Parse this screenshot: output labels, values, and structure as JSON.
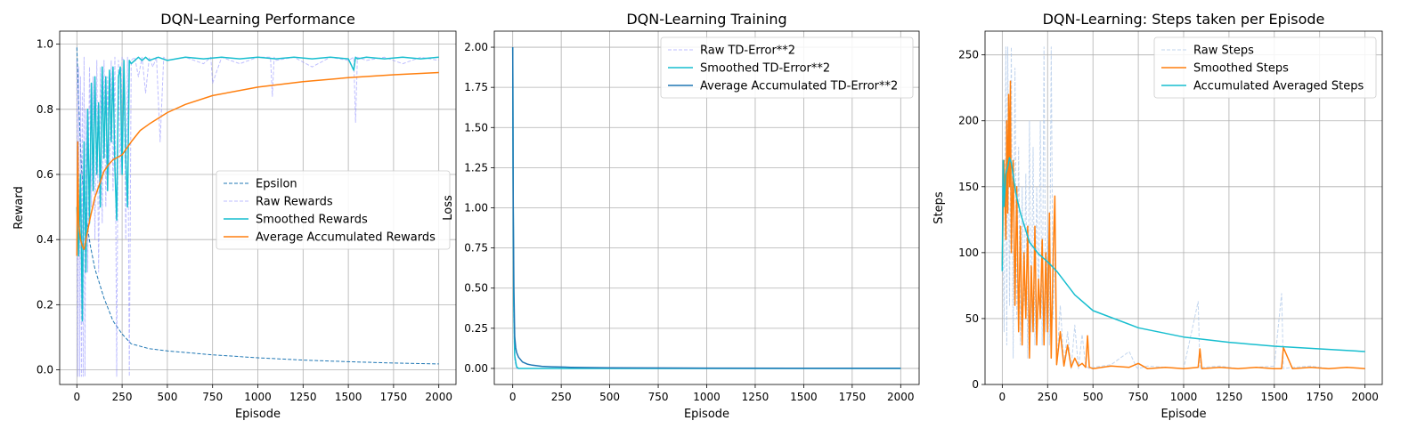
{
  "chart_data": [
    {
      "type": "line",
      "title": "DQN-Learning Performance",
      "xlabel": "Episode",
      "ylabel": "Reward",
      "xlim": [
        -95,
        2095
      ],
      "ylim": [
        -0.045,
        1.04
      ],
      "xticks": [
        0,
        250,
        500,
        750,
        1000,
        1250,
        1500,
        1750,
        2000
      ],
      "yticks": [
        0.0,
        0.2,
        0.4,
        0.6,
        0.8,
        1.0
      ],
      "ytick_decimals": 1,
      "grid": true,
      "legend_position": "center-right",
      "series": [
        {
          "name": "Epsilon",
          "color": "#1f77b4",
          "style": "dashed",
          "width": 1,
          "x": [
            0,
            10,
            25,
            50,
            75,
            100,
            150,
            200,
            250,
            300,
            400,
            500,
            750,
            1000,
            1250,
            1500,
            1750,
            2000
          ],
          "y": [
            0.99,
            0.82,
            0.62,
            0.47,
            0.38,
            0.31,
            0.22,
            0.15,
            0.11,
            0.08,
            0.065,
            0.058,
            0.046,
            0.037,
            0.03,
            0.025,
            0.021,
            0.018
          ]
        },
        {
          "name": "Raw Rewards",
          "color": "#8888ff",
          "style": "dashed",
          "width": 1,
          "opacity": 0.55,
          "x": [
            0,
            5,
            10,
            15,
            20,
            25,
            30,
            35,
            40,
            45,
            50,
            60,
            70,
            80,
            90,
            100,
            110,
            120,
            130,
            140,
            150,
            160,
            170,
            180,
            190,
            200,
            210,
            220,
            230,
            240,
            250,
            260,
            270,
            280,
            290,
            300,
            320,
            340,
            360,
            380,
            400,
            420,
            440,
            460,
            480,
            500,
            600,
            700,
            740,
            750,
            800,
            900,
            1000,
            1070,
            1080,
            1090,
            1100,
            1200,
            1300,
            1400,
            1500,
            1530,
            1540,
            1550,
            1600,
            1700,
            1800,
            1900,
            2000
          ],
          "y": [
            0.95,
            -0.02,
            0.93,
            -0.02,
            0.9,
            -0.02,
            0.85,
            -0.02,
            0.96,
            -0.02,
            0.8,
            0.3,
            0.93,
            0.5,
            0.9,
            0.4,
            0.95,
            0.3,
            0.93,
            0.45,
            0.95,
            0.5,
            0.9,
            0.6,
            0.95,
            0.55,
            0.96,
            -0.02,
            0.95,
            0.6,
            0.96,
            0.95,
            0.4,
            0.96,
            -0.02,
            0.95,
            0.96,
            0.9,
            0.96,
            0.85,
            0.96,
            0.93,
            0.96,
            0.7,
            0.96,
            0.95,
            0.96,
            0.94,
            0.96,
            0.88,
            0.96,
            0.94,
            0.96,
            0.96,
            0.84,
            0.96,
            0.95,
            0.96,
            0.93,
            0.96,
            0.95,
            0.96,
            0.76,
            0.96,
            0.95,
            0.96,
            0.94,
            0.96,
            0.95
          ]
        },
        {
          "name": "Smoothed Rewards",
          "color": "#17becf",
          "style": "solid",
          "width": 1.5,
          "x": [
            0,
            10,
            20,
            30,
            40,
            50,
            60,
            70,
            80,
            90,
            100,
            110,
            120,
            130,
            140,
            150,
            160,
            170,
            180,
            190,
            200,
            210,
            220,
            230,
            240,
            250,
            260,
            270,
            280,
            290,
            300,
            320,
            340,
            360,
            380,
            400,
            450,
            500,
            600,
            700,
            800,
            900,
            1000,
            1100,
            1200,
            1300,
            1400,
            1500,
            1530,
            1540,
            1550,
            1600,
            1700,
            1800,
            1900,
            2000
          ],
          "y": [
            0.5,
            0.35,
            0.6,
            0.15,
            0.7,
            0.3,
            0.8,
            0.45,
            0.88,
            0.55,
            0.9,
            0.6,
            0.82,
            0.5,
            0.93,
            0.65,
            0.9,
            0.55,
            0.92,
            0.7,
            0.93,
            0.62,
            0.46,
            0.9,
            0.93,
            0.6,
            0.95,
            0.65,
            0.5,
            0.95,
            0.94,
            0.95,
            0.96,
            0.95,
            0.96,
            0.95,
            0.96,
            0.95,
            0.96,
            0.955,
            0.96,
            0.955,
            0.96,
            0.955,
            0.96,
            0.955,
            0.96,
            0.955,
            0.92,
            0.96,
            0.955,
            0.96,
            0.955,
            0.96,
            0.955,
            0.96
          ]
        },
        {
          "name": "Average Accumulated Rewards",
          "color": "#ff7f0e",
          "style": "solid",
          "width": 1.5,
          "x": [
            0,
            5,
            10,
            20,
            30,
            40,
            50,
            75,
            100,
            125,
            150,
            175,
            200,
            250,
            300,
            350,
            400,
            500,
            600,
            750,
            1000,
            1250,
            1500,
            1750,
            2000
          ],
          "y": [
            0.35,
            0.7,
            0.45,
            0.4,
            0.38,
            0.37,
            0.4,
            0.47,
            0.53,
            0.57,
            0.61,
            0.63,
            0.645,
            0.66,
            0.7,
            0.735,
            0.755,
            0.79,
            0.815,
            0.842,
            0.868,
            0.885,
            0.897,
            0.906,
            0.913
          ]
        }
      ]
    },
    {
      "type": "line",
      "title": "DQN-Learning Training",
      "xlabel": "Episode",
      "ylabel": "Loss",
      "xlim": [
        -95,
        2095
      ],
      "ylim": [
        -0.1,
        2.1
      ],
      "xticks": [
        0,
        250,
        500,
        750,
        1000,
        1250,
        1500,
        1750,
        2000
      ],
      "yticks": [
        0.0,
        0.25,
        0.5,
        0.75,
        1.0,
        1.25,
        1.5,
        1.75,
        2.0
      ],
      "ytick_decimals": 2,
      "grid": true,
      "legend_position": "top-right",
      "series": [
        {
          "name": "Raw TD-Error**2",
          "color": "#8888ff",
          "style": "dashed",
          "width": 1,
          "opacity": 0.55,
          "x": [
            0,
            2,
            5,
            10,
            20,
            2000
          ],
          "y": [
            2.0,
            1.0,
            0.3,
            0.05,
            0.0,
            0.0
          ]
        },
        {
          "name": "Smoothed TD-Error**2",
          "color": "#17becf",
          "style": "solid",
          "width": 1.5,
          "x": [
            0,
            2,
            5,
            10,
            20,
            30,
            2000
          ],
          "y": [
            2.0,
            1.2,
            0.4,
            0.08,
            0.01,
            0.0,
            0.0
          ]
        },
        {
          "name": "Average Accumulated TD-Error**2",
          "color": "#1f77b4",
          "style": "solid",
          "width": 1.5,
          "x": [
            0,
            3,
            6,
            10,
            15,
            20,
            30,
            50,
            75,
            100,
            150,
            200,
            300,
            500,
            1000,
            2000
          ],
          "y": [
            2.0,
            1.0,
            0.5,
            0.2,
            0.13,
            0.1,
            0.07,
            0.04,
            0.027,
            0.02,
            0.013,
            0.01,
            0.007,
            0.004,
            0.002,
            0.001
          ]
        }
      ]
    },
    {
      "type": "line",
      "title": "DQN-Learning: Steps taken per Episode",
      "xlabel": "Episode",
      "ylabel": "Steps",
      "xlim": [
        -95,
        2095
      ],
      "ylim": [
        0,
        268
      ],
      "xticks": [
        0,
        250,
        500,
        750,
        1000,
        1250,
        1500,
        1750,
        2000
      ],
      "yticks": [
        0,
        50,
        100,
        150,
        200,
        250
      ],
      "ytick_decimals": 0,
      "grid": true,
      "legend_position": "top-right",
      "series": [
        {
          "name": "Raw Steps",
          "color": "#aec7e8",
          "style": "dashed",
          "width": 1,
          "opacity": 0.75,
          "x": [
            0,
            10,
            20,
            25,
            30,
            40,
            50,
            60,
            70,
            80,
            90,
            100,
            110,
            120,
            130,
            140,
            150,
            160,
            170,
            180,
            190,
            200,
            210,
            220,
            230,
            240,
            250,
            260,
            270,
            280,
            290,
            300,
            320,
            340,
            360,
            380,
            400,
            420,
            440,
            460,
            480,
            500,
            600,
            700,
            740,
            750,
            800,
            900,
            1000,
            1080,
            1090,
            1100,
            1200,
            1300,
            1400,
            1500,
            1540,
            1550,
            1600,
            1700,
            1800,
            1900,
            2000
          ],
          "y": [
            150,
            40,
            256,
            30,
            256,
            60,
            256,
            20,
            240,
            50,
            180,
            30,
            150,
            60,
            160,
            20,
            200,
            40,
            180,
            30,
            150,
            60,
            200,
            30,
            256,
            40,
            120,
            30,
            256,
            50,
            100,
            15,
            60,
            15,
            40,
            12,
            45,
            12,
            38,
            14,
            12,
            13,
            15,
            25,
            13,
            12,
            14,
            13,
            12,
            63,
            12,
            13,
            14,
            12,
            13,
            14,
            69,
            12,
            13,
            14,
            12,
            13,
            12
          ]
        },
        {
          "name": "Smoothed Steps",
          "color": "#ff7f0e",
          "style": "solid",
          "width": 1.5,
          "x": [
            0,
            10,
            20,
            25,
            30,
            35,
            40,
            45,
            50,
            60,
            70,
            80,
            90,
            100,
            110,
            120,
            130,
            140,
            150,
            160,
            170,
            180,
            190,
            200,
            210,
            220,
            230,
            240,
            250,
            260,
            270,
            280,
            290,
            300,
            320,
            340,
            360,
            380,
            400,
            420,
            440,
            460,
            470,
            480,
            500,
            600,
            700,
            750,
            800,
            900,
            1000,
            1080,
            1090,
            1100,
            1200,
            1300,
            1400,
            1500,
            1540,
            1550,
            1600,
            1700,
            1800,
            1900,
            2000
          ],
          "y": [
            90,
            170,
            110,
            200,
            130,
            220,
            150,
            230,
            100,
            170,
            60,
            150,
            40,
            120,
            30,
            100,
            50,
            120,
            20,
            90,
            40,
            120,
            30,
            80,
            50,
            110,
            30,
            100,
            40,
            130,
            20,
            95,
            143,
            15,
            40,
            14,
            30,
            13,
            20,
            14,
            16,
            13,
            37,
            13,
            12,
            14,
            13,
            16,
            12,
            13,
            12,
            13,
            27,
            12,
            13,
            12,
            13,
            12,
            12,
            28,
            12,
            13,
            12,
            13,
            12
          ]
        },
        {
          "name": "Accumulated Averaged Steps",
          "color": "#17becf",
          "style": "solid",
          "width": 1.5,
          "x": [
            0,
            5,
            10,
            20,
            30,
            40,
            50,
            75,
            100,
            150,
            200,
            250,
            300,
            400,
            500,
            750,
            1000,
            1250,
            1500,
            1750,
            2000
          ],
          "y": [
            86,
            170,
            135,
            160,
            165,
            172,
            168,
            145,
            130,
            108,
            99,
            93,
            86,
            68,
            56,
            43,
            36,
            32,
            29,
            27,
            25
          ]
        }
      ]
    }
  ]
}
